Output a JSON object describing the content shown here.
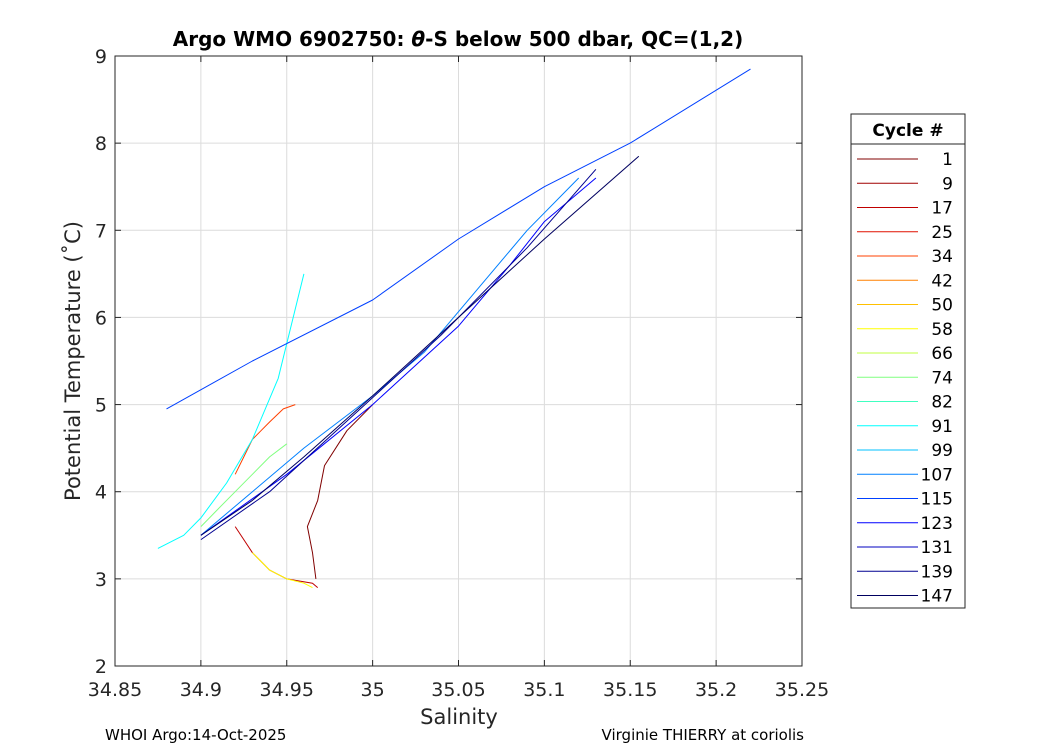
{
  "chart_data": {
    "type": "line",
    "title_prefix": "Argo WMO 6902750: ",
    "title_theta": "θ",
    "title_suffix": "-S below 500 dbar,  QC=(1,2)",
    "xlabel": "Salinity",
    "ylabel": "Potential Temperature (˚C)",
    "xlim": [
      34.85,
      35.25
    ],
    "ylim": [
      2,
      9
    ],
    "xticks": [
      "34.85",
      "34.9",
      "34.95",
      "35",
      "35.05",
      "35.1",
      "35.15",
      "35.2",
      "35.25"
    ],
    "yticks": [
      "2",
      "3",
      "4",
      "5",
      "6",
      "7",
      "8",
      "9"
    ],
    "grid": true,
    "legend": {
      "title": "Cycle #",
      "position": "right",
      "entries": [
        "1",
        "9",
        "17",
        "25",
        "34",
        "42",
        "50",
        "58",
        "66",
        "74",
        "82",
        "91",
        "99",
        "107",
        "115",
        "123",
        "131",
        "139",
        "147"
      ],
      "colors": [
        "#800000",
        "#a00000",
        "#c00000",
        "#e01000",
        "#ff4000",
        "#ff8000",
        "#ffc000",
        "#ffff00",
        "#c0ff40",
        "#80ff80",
        "#40ffc0",
        "#00ffff",
        "#00c0ff",
        "#0080ff",
        "#0040ff",
        "#0000ff",
        "#0000c0",
        "#000090",
        "#000060"
      ]
    },
    "series": [
      {
        "name": "1",
        "x": [
          34.967,
          34.965,
          34.962,
          34.968,
          34.972,
          34.985,
          35.0
        ],
        "y": [
          3.0,
          3.3,
          3.6,
          3.9,
          4.3,
          4.7,
          5.0
        ]
      },
      {
        "name": "17",
        "x": [
          34.92,
          34.925,
          34.93,
          34.935,
          34.94,
          34.95,
          34.965,
          34.968
        ],
        "y": [
          3.6,
          3.45,
          3.3,
          3.2,
          3.1,
          3.0,
          2.95,
          2.9
        ]
      },
      {
        "name": "34",
        "x": [
          34.92,
          34.925,
          34.93,
          34.935,
          34.94,
          34.948,
          34.955
        ],
        "y": [
          4.2,
          4.4,
          4.6,
          4.7,
          4.8,
          4.95,
          5.0
        ]
      },
      {
        "name": "58",
        "x": [
          34.93,
          34.935,
          34.94,
          34.95,
          34.96,
          34.965
        ],
        "y": [
          3.3,
          3.2,
          3.1,
          3.0,
          2.95,
          2.9
        ]
      },
      {
        "name": "74",
        "x": [
          34.9,
          34.91,
          34.92,
          34.93,
          34.94,
          34.95
        ],
        "y": [
          3.6,
          3.8,
          4.0,
          4.2,
          4.4,
          4.55
        ]
      },
      {
        "name": "91",
        "x": [
          34.875,
          34.89,
          34.9,
          34.915,
          34.93,
          34.945,
          34.96
        ],
        "y": [
          3.35,
          3.5,
          3.7,
          4.1,
          4.6,
          5.3,
          6.5
        ]
      },
      {
        "name": "107",
        "x": [
          34.9,
          34.93,
          34.96,
          35.0,
          35.03,
          35.06,
          35.09,
          35.12
        ],
        "y": [
          3.5,
          4.0,
          4.5,
          5.1,
          5.6,
          6.3,
          7.0,
          7.6
        ]
      },
      {
        "name": "115",
        "x": [
          34.88,
          34.93,
          35.0,
          35.05,
          35.1,
          35.15,
          35.22
        ],
        "y": [
          4.95,
          5.5,
          6.2,
          6.9,
          7.5,
          8.0,
          8.85
        ]
      },
      {
        "name": "123",
        "x": [
          34.9,
          34.95,
          35.0,
          35.05,
          35.08,
          35.1,
          35.13
        ],
        "y": [
          3.5,
          4.2,
          5.0,
          5.9,
          6.6,
          7.1,
          7.6
        ]
      },
      {
        "name": "139",
        "x": [
          34.9,
          34.94,
          34.99,
          35.04,
          35.09,
          35.13
        ],
        "y": [
          3.45,
          4.0,
          4.9,
          5.8,
          6.8,
          7.7
        ]
      },
      {
        "name": "147",
        "x": [
          34.9,
          34.93,
          34.96,
          35.0,
          35.05,
          35.1,
          35.155
        ],
        "y": [
          3.5,
          3.9,
          4.4,
          5.1,
          6.0,
          6.9,
          7.85
        ]
      }
    ]
  },
  "footer": {
    "left": "WHOI Argo:14-Oct-2025",
    "right": "Virginie THIERRY at coriolis"
  }
}
